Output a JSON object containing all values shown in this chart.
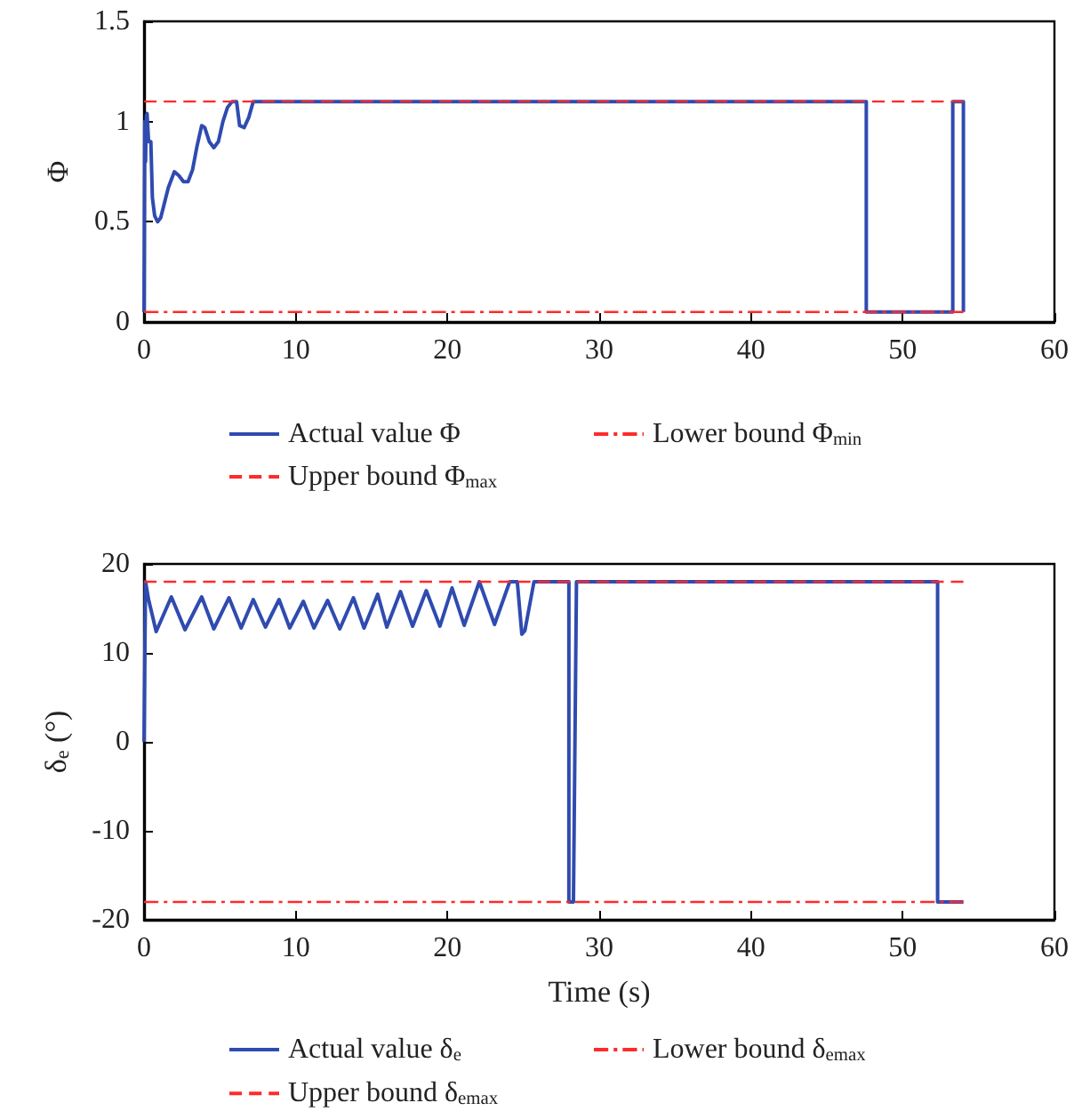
{
  "chart_data": [
    {
      "type": "line",
      "ylabel": "Φ",
      "xlim": [
        0,
        60
      ],
      "xticks": [
        0,
        10,
        20,
        30,
        40,
        50,
        60
      ],
      "ylim": [
        0,
        1.5
      ],
      "yticks": [
        0,
        0.5,
        1,
        1.5
      ],
      "grid": false,
      "legend": "bottom",
      "marker": "none",
      "series": [
        {
          "name": "Actual value Φ",
          "color": "#2f4bb0",
          "line_style": "solid",
          "x": [
            0,
            0.05,
            0.1,
            0.15,
            0.2,
            0.3,
            0.45,
            0.55,
            0.7,
            0.9,
            1.1,
            1.3,
            1.6,
            2.0,
            2.3,
            2.6,
            2.9,
            3.2,
            3.5,
            3.8,
            4.0,
            4.3,
            4.6,
            4.9,
            5.2,
            5.5,
            5.8,
            6.1,
            6.3,
            6.6,
            6.9,
            7.2,
            47.6,
            47.6,
            53.3,
            53.3,
            54.0,
            54.0
          ],
          "values": [
            0.05,
            1.0,
            0.8,
            1.03,
            1.04,
            0.9,
            0.9,
            0.62,
            0.53,
            0.5,
            0.52,
            0.58,
            0.67,
            0.75,
            0.73,
            0.7,
            0.7,
            0.76,
            0.88,
            0.98,
            0.97,
            0.9,
            0.87,
            0.9,
            1.0,
            1.07,
            1.1,
            1.1,
            0.98,
            0.97,
            1.02,
            1.1,
            1.1,
            0.05,
            0.05,
            1.1,
            1.1,
            0.05
          ]
        },
        {
          "name": "Upper bound Φ$_{max}$",
          "color": "#ff2a2a",
          "line_style": "dashed",
          "x": [
            0,
            54
          ],
          "values": [
            1.1,
            1.1
          ]
        },
        {
          "name": "Lower bound Φ$_{min}$",
          "color": "#ff2a2a",
          "line_style": "dashdot",
          "x": [
            0,
            54
          ],
          "values": [
            0.05,
            0.05
          ]
        }
      ]
    },
    {
      "type": "line",
      "xlabel": "Time (s)",
      "ylabel": "δ$_{e}$ (°)",
      "xlim": [
        0,
        60
      ],
      "xticks": [
        0,
        10,
        20,
        30,
        40,
        50,
        60
      ],
      "ylim": [
        -20,
        20
      ],
      "yticks": [
        -20,
        -10,
        0,
        10,
        20
      ],
      "grid": false,
      "legend": "bottom",
      "marker": "none",
      "series": [
        {
          "name": "Actual value δ$_{e}$",
          "color": "#2f4bb0",
          "line_style": "solid",
          "x": [
            0,
            0.1,
            0.3,
            0.8,
            1.8,
            2.7,
            3.8,
            4.6,
            5.6,
            6.4,
            7.2,
            8.0,
            8.9,
            9.6,
            10.5,
            11.2,
            12.1,
            12.9,
            13.8,
            14.5,
            15.4,
            16.0,
            16.9,
            17.7,
            18.6,
            19.5,
            20.3,
            21.1,
            22.1,
            23.1,
            24.1,
            24.6,
            24.9,
            25.1,
            25.7,
            28.0,
            28.0,
            28.3,
            28.5,
            52.3,
            52.3,
            54.0
          ],
          "values": [
            0,
            18,
            16,
            12.4,
            16.3,
            12.6,
            16.3,
            12.7,
            16.2,
            12.8,
            16.0,
            12.9,
            16.0,
            12.8,
            15.8,
            12.8,
            15.9,
            12.7,
            16.2,
            12.8,
            16.6,
            12.9,
            16.9,
            13.0,
            17.0,
            13.0,
            17.3,
            13.1,
            18,
            13.2,
            18,
            18,
            12.1,
            12.5,
            18,
            18,
            -18,
            -18,
            18,
            18,
            -18,
            -18
          ]
        },
        {
          "name": "Upper bound δ$_{emax}$",
          "color": "#ff2a2a",
          "line_style": "dashed",
          "x": [
            0,
            54
          ],
          "values": [
            18,
            18
          ]
        },
        {
          "name": "Lower bound δ$_{emax}$",
          "color": "#ff2a2a",
          "line_style": "dashdot",
          "x": [
            0,
            54
          ],
          "values": [
            -18,
            -18
          ]
        }
      ]
    }
  ]
}
